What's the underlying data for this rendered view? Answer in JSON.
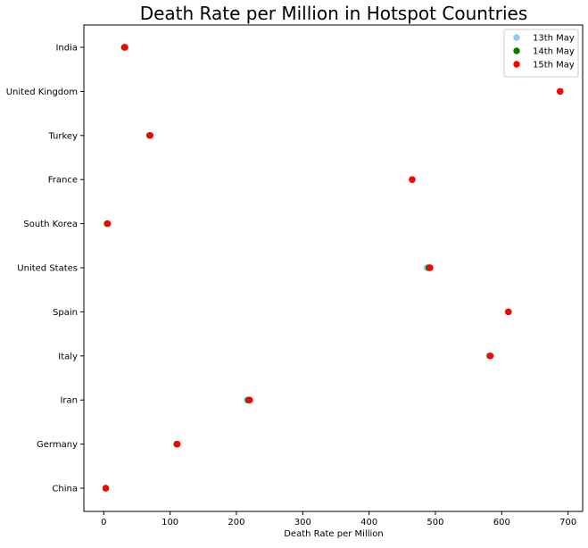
{
  "chart_data": {
    "type": "scatter",
    "title": "Death Rate per Million in Hotspot Countries",
    "xlabel": "Death Rate per Million",
    "ylabel": "",
    "categories": [
      "China",
      "Germany",
      "Iran",
      "Italy",
      "Spain",
      "United States",
      "South Korea",
      "France",
      "Turkey",
      "United Kingdom",
      "India"
    ],
    "xlim": [
      -30,
      722
    ],
    "x_ticks": [
      0,
      100,
      200,
      300,
      400,
      500,
      600,
      700
    ],
    "grid": false,
    "legend_position": "top-right",
    "series": [
      {
        "name": "13th May",
        "color": "#87ceeb",
        "values": [
          3,
          110,
          216,
          582,
          610,
          487,
          5,
          465,
          69,
          688,
          31
        ]
      },
      {
        "name": "14th May",
        "color": "#008000",
        "values": [
          3,
          110,
          218,
          582,
          610,
          490,
          5,
          465,
          69,
          688,
          31
        ]
      },
      {
        "name": "15th May",
        "color": "#ff0000",
        "values": [
          3,
          111,
          220,
          583,
          610,
          492,
          6,
          465,
          70,
          688,
          32
        ]
      }
    ]
  }
}
